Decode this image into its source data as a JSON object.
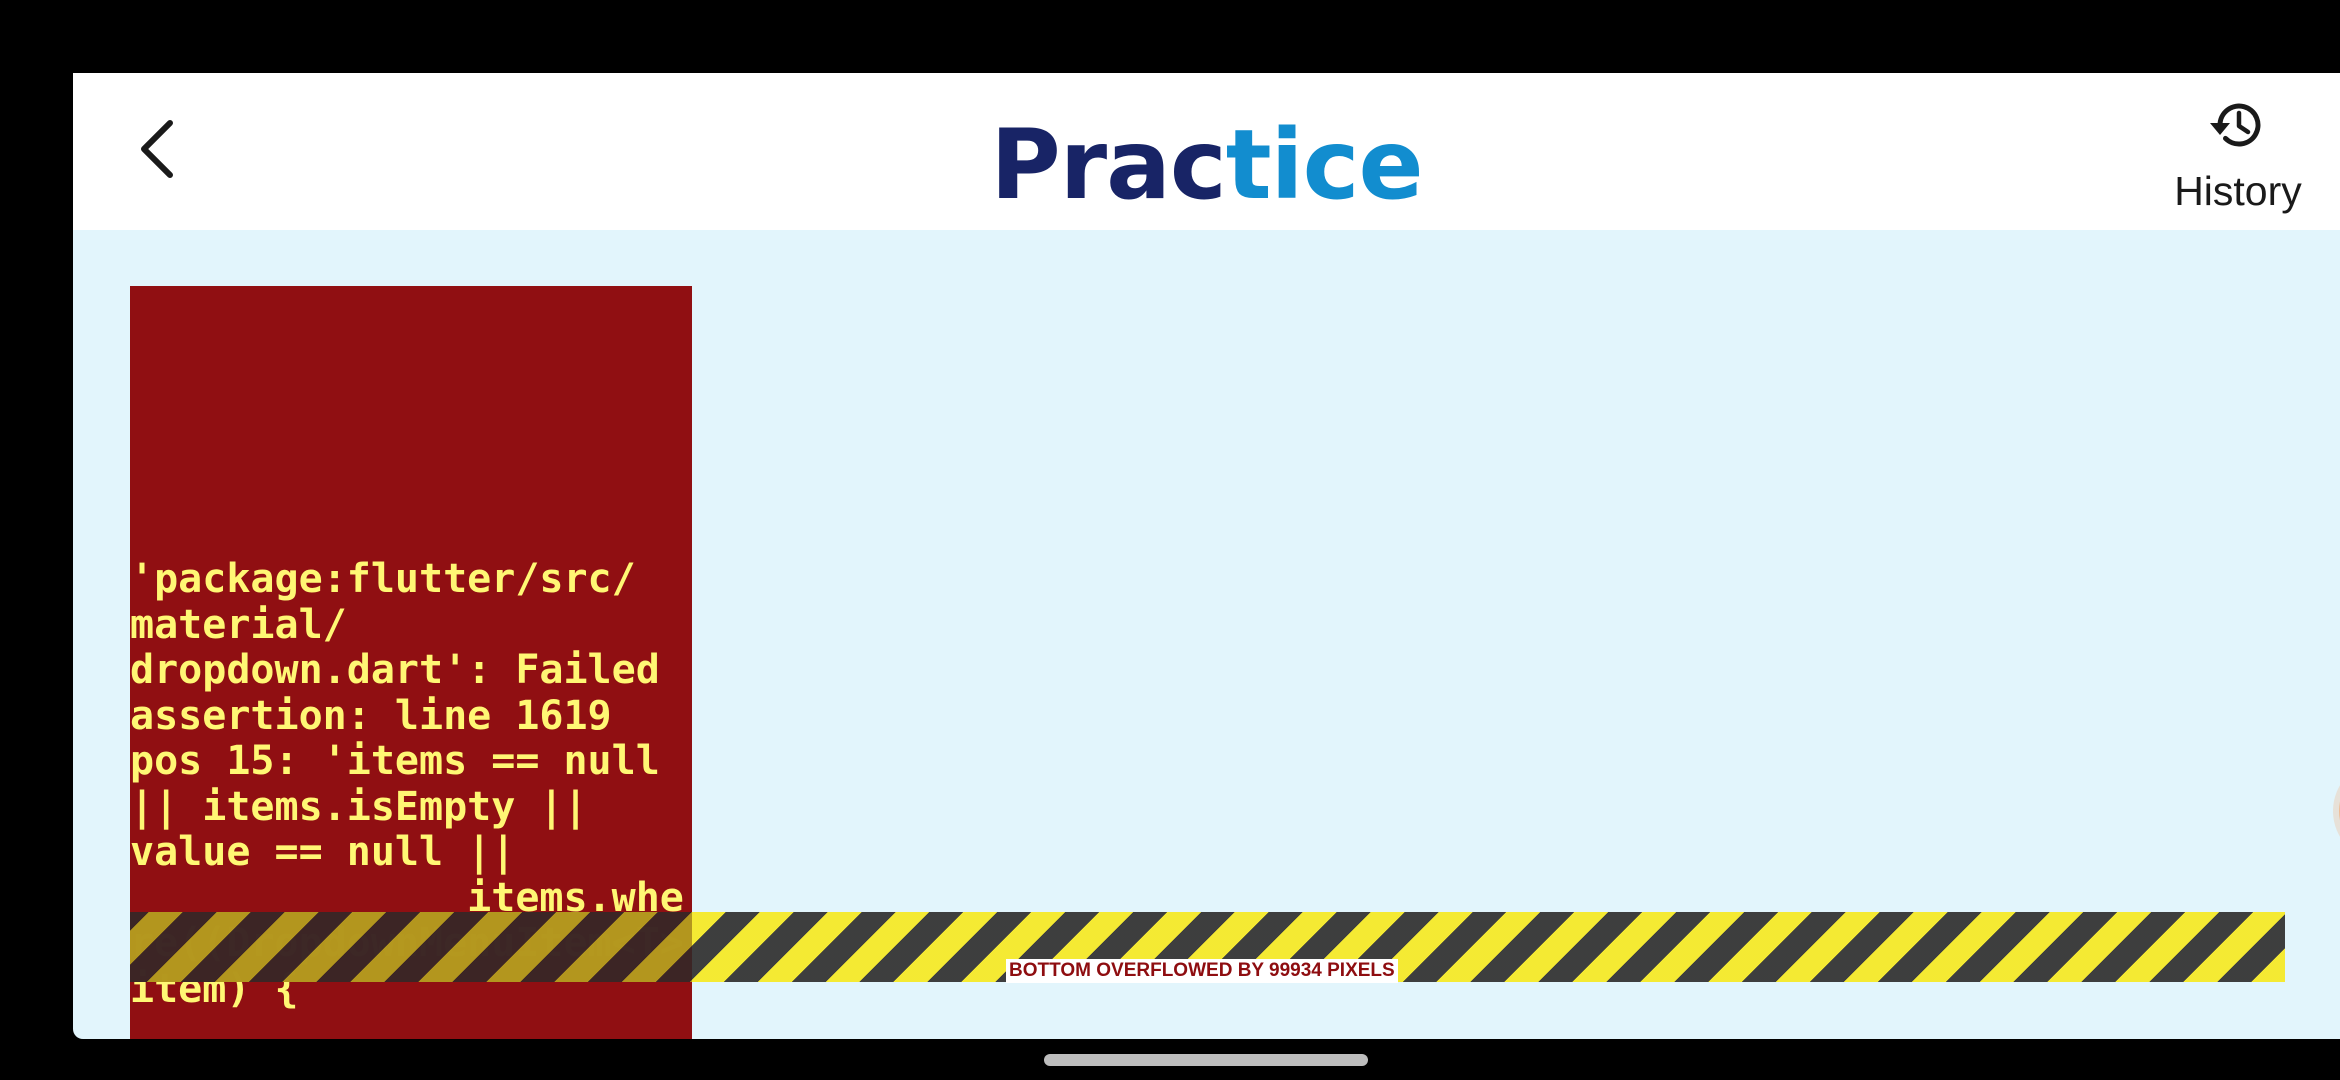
{
  "app_bar": {
    "back_icon": "chevron-left-icon",
    "title_part_a": "Prac",
    "title_part_b": "tice",
    "history_icon": "history-icon",
    "history_label": "History"
  },
  "error": {
    "message": "'package:flutter/src/\nmaterial/\ndropdown.dart': Failed\nassertion: line 1619\npos 15: 'items == null\n|| items.isEmpty ||\nvalue == null ||\n              items.whe\nre((DropdownMenuItem<T>\nitem) {",
    "overflow_label": "BOTTOM OVERFLOWED BY 99934 PIXELS"
  },
  "floating_button": {
    "icon": "video-camera-icon"
  },
  "colors": {
    "title_dark": "#182466",
    "title_light": "#128DCF",
    "background": "#E2F5FC",
    "error_background": "#900F12",
    "error_text": "#FFF774",
    "stripe_yellow": "#F5EA2F",
    "stripe_dark": "#3A3A3A",
    "floating_button": "#F0BC95"
  }
}
